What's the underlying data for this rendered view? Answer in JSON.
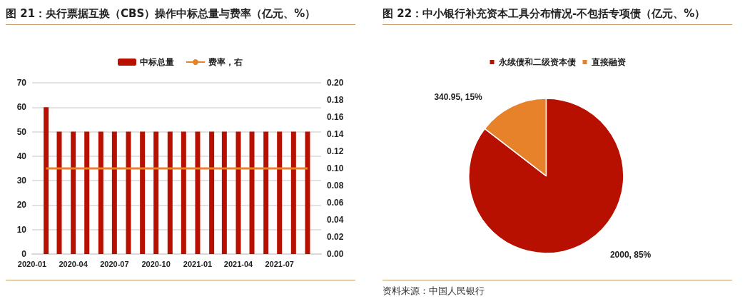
{
  "chart_data": [
    {
      "type": "bar",
      "title": "图 21：央行票据互换（CBS）操作中标总量与费率（亿元、%）",
      "x": [
        "2020-02",
        "2020-03",
        "2020-04",
        "2020-05",
        "2020-06",
        "2020-07",
        "2020-08",
        "2020-09",
        "2020-10",
        "2020-11",
        "2020-12",
        "2021-01",
        "2021-02",
        "2021-03",
        "2021-04",
        "2021-05",
        "2021-06",
        "2021-07",
        "2021-08",
        "2021-09"
      ],
      "series": [
        {
          "name": "中标总量",
          "type": "bar",
          "color": "#b81000",
          "values": [
            60,
            50,
            50,
            50,
            50,
            50,
            50,
            50,
            50,
            50,
            50,
            50,
            50,
            50,
            50,
            50,
            50,
            50,
            50,
            50
          ]
        },
        {
          "name": "费率，右",
          "type": "line",
          "axis": "y2",
          "color": "#e8822a",
          "values": [
            0.1,
            0.1,
            0.1,
            0.1,
            0.1,
            0.1,
            0.1,
            0.1,
            0.1,
            0.1,
            0.1,
            0.1,
            0.1,
            0.1,
            0.1,
            0.1,
            0.1,
            0.1,
            0.1,
            0.1
          ]
        }
      ],
      "xlim": [
        "2020-01",
        "2021-10"
      ],
      "xticks": [
        "2020-01",
        "2020-04",
        "2020-07",
        "2020-10",
        "2021-01",
        "2021-04",
        "2021-07"
      ],
      "ylim": [
        0,
        70
      ],
      "yticks": [
        0,
        10,
        20,
        30,
        40,
        50,
        60,
        70
      ],
      "y2lim": [
        0,
        0.2
      ],
      "y2ticks": [
        {
          "value": 0,
          "label": "0.00"
        },
        {
          "value": 0.02,
          "label": "0.02"
        },
        {
          "value": 0.04,
          "label": "0.04"
        },
        {
          "value": 0.06,
          "label": "0.06"
        },
        {
          "value": 0.08,
          "label": "0.08"
        },
        {
          "value": 0.1,
          "label": "0.10"
        },
        {
          "value": 0.12,
          "label": "0.12"
        },
        {
          "value": 0.14,
          "label": "0.14"
        },
        {
          "value": 0.16,
          "label": "0.16"
        },
        {
          "value": 0.18,
          "label": "0.18"
        },
        {
          "value": 0.2,
          "label": "0.20"
        }
      ],
      "grid": "y",
      "legend": "top",
      "marker": "none"
    },
    {
      "type": "pie",
      "title": "图 22：中小银行补充资本工具分布情况-不包括专项债（亿元、%）",
      "categories": [
        "永续债和二级资本债",
        "直接融资"
      ],
      "values": [
        2000,
        340.95
      ],
      "colors": [
        "#b81000",
        "#e8822a"
      ],
      "value_labels": [
        "2000, 85%",
        "340.95, 15%"
      ],
      "legend": "top",
      "annotations": [
        "资料来源：中国人民银行"
      ]
    }
  ]
}
